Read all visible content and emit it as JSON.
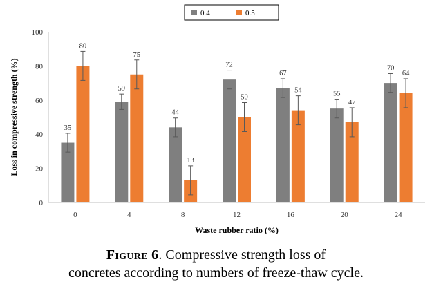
{
  "chart_data": {
    "type": "bar",
    "categories": [
      "0",
      "4",
      "8",
      "12",
      "16",
      "20",
      "24"
    ],
    "series": [
      {
        "name": "0.4",
        "color": "#7f7f7f",
        "values": [
          35,
          59,
          44,
          72,
          67,
          55,
          70
        ],
        "error": [
          5.5,
          4.5,
          5.5,
          5.5,
          5.5,
          5.5,
          5.5
        ]
      },
      {
        "name": "0.5",
        "color": "#ed7d31",
        "values": [
          80,
          75,
          13,
          50,
          54,
          47,
          64
        ],
        "error": [
          8.5,
          8.5,
          8.5,
          8.5,
          8.5,
          8.5,
          8.5
        ]
      }
    ],
    "xlabel": "Waste rubber ratio (%)",
    "ylabel": "Loss in compressive strength (%)",
    "ylim": [
      0,
      100
    ],
    "yticks": [
      0,
      20,
      40,
      60,
      80,
      100
    ],
    "grid": false,
    "legend_position": "top-center"
  },
  "caption": {
    "lead": "Figure 6",
    "text": ". Compressive strength loss of",
    "line2": "concretes according to numbers of freeze-thaw cycle."
  }
}
